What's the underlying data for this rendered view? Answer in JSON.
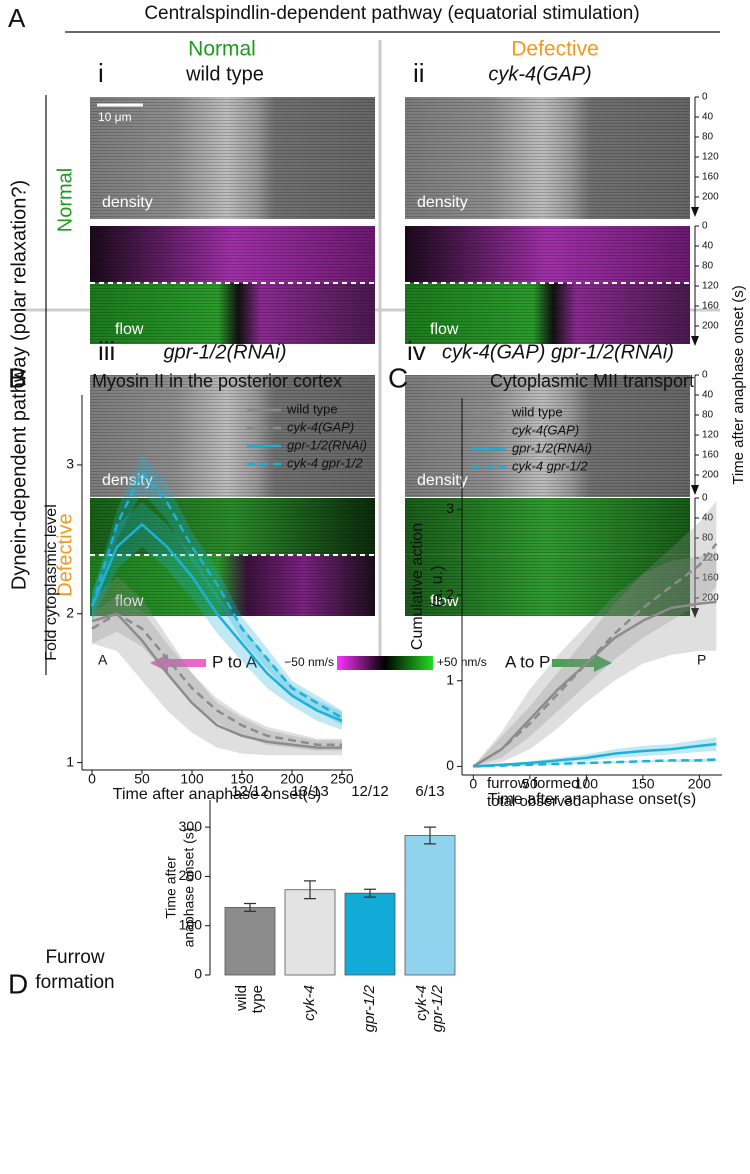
{
  "panel_a": {
    "label": "A",
    "title": "Centralspindlin-dependent pathway (equatorial stimulation)",
    "column_headers": [
      {
        "text": "Normal",
        "color": "#1f9a1f"
      },
      {
        "text": "Defective",
        "color": "#f39a1e"
      }
    ],
    "row_axis_label": "Dynein-dependent pathway (polar relaxation?)",
    "row_headers": [
      {
        "text": "Normal",
        "color": "#1f9a1f"
      },
      {
        "text": "Defective",
        "color": "#f39a1e"
      }
    ],
    "panels": [
      {
        "numeral": "i",
        "genotype": "wild type"
      },
      {
        "numeral": "ii",
        "genotype": "cyk-4(GAP)"
      },
      {
        "numeral": "iii",
        "genotype": "gpr-1/2(RNAi)"
      },
      {
        "numeral": "iv",
        "genotype": "cyk-4(GAP) gpr-1/2(RNAi)"
      }
    ],
    "density_label": "density",
    "flow_label": "flow",
    "scale_bar": "10 μm",
    "time_ticks": [
      0,
      40,
      80,
      120,
      160,
      200
    ],
    "time_label": "Time after anaphase onset (s)",
    "anterior": "A",
    "posterior": "P",
    "p_to_a": "P to A",
    "a_to_p": "A to P",
    "scale_min": "−50 nm/s",
    "scale_max": "+50 nm/s"
  },
  "chart_data": [
    {
      "type": "line",
      "label": "B",
      "title": "Myosin II in the posterior cortex",
      "xlabel": "Time after anaphase onset(s)",
      "ylabel": [
        "Fold cytoplasmic level"
      ],
      "x": [
        0,
        25,
        50,
        75,
        100,
        125,
        150,
        175,
        200,
        225,
        250
      ],
      "xlim": [
        -10,
        260
      ],
      "ylim": [
        0.95,
        3.47
      ],
      "xticks": [
        0,
        50,
        100,
        150,
        200,
        250
      ],
      "yticks": [
        1,
        2,
        3
      ],
      "legend": "upper right",
      "series": [
        {
          "name": "wild type",
          "color": "#8c8c8c",
          "dash": false,
          "values": [
            1.95,
            2.0,
            1.82,
            1.6,
            1.4,
            1.25,
            1.18,
            1.14,
            1.12,
            1.1,
            1.1
          ],
          "lower": [
            1.8,
            1.75,
            1.55,
            1.35,
            1.2,
            1.1,
            1.06,
            1.05,
            1.05,
            1.05,
            1.05
          ],
          "upper": [
            2.1,
            2.25,
            2.1,
            1.85,
            1.6,
            1.4,
            1.3,
            1.22,
            1.18,
            1.15,
            1.15
          ]
        },
        {
          "name": "cyk-4(GAP)",
          "color": "#8c8c8c",
          "dash": true,
          "values": [
            1.9,
            2.0,
            1.9,
            1.7,
            1.5,
            1.35,
            1.25,
            1.18,
            1.15,
            1.12,
            1.12
          ],
          "lower": [
            1.8,
            1.88,
            1.78,
            1.6,
            1.4,
            1.27,
            1.18,
            1.12,
            1.1,
            1.08,
            1.08
          ],
          "upper": [
            2.0,
            2.12,
            2.02,
            1.8,
            1.6,
            1.43,
            1.32,
            1.24,
            1.2,
            1.16,
            1.16
          ]
        },
        {
          "name": "gpr-1/2(RNAi)",
          "color": "#1fb0d8",
          "dash": false,
          "values": [
            2.05,
            2.45,
            2.6,
            2.45,
            2.25,
            2.0,
            1.8,
            1.6,
            1.45,
            1.35,
            1.28
          ],
          "lower": [
            1.95,
            2.3,
            2.45,
            2.3,
            2.1,
            1.87,
            1.68,
            1.5,
            1.38,
            1.28,
            1.22
          ],
          "upper": [
            2.15,
            2.6,
            2.75,
            2.6,
            2.4,
            2.13,
            1.92,
            1.7,
            1.52,
            1.42,
            1.34
          ]
        },
        {
          "name": "cyk-4 gpr-1/2",
          "color": "#1fb0d8",
          "dash": true,
          "values": [
            2.05,
            2.6,
            2.95,
            2.75,
            2.45,
            2.2,
            1.9,
            1.7,
            1.5,
            1.4,
            1.3
          ],
          "lower": [
            1.97,
            2.5,
            2.82,
            2.63,
            2.35,
            2.1,
            1.82,
            1.63,
            1.45,
            1.35,
            1.25
          ],
          "upper": [
            2.13,
            2.7,
            3.08,
            2.87,
            2.55,
            2.3,
            1.98,
            1.77,
            1.55,
            1.45,
            1.35
          ]
        }
      ]
    },
    {
      "type": "line",
      "label": "C",
      "title": "Cytoplasmic MII transport",
      "xlabel": "Time after anaphase onset(s)",
      "ylabel": [
        "Cumulative action",
        "(a. u.)"
      ],
      "x": [
        0,
        25,
        50,
        75,
        100,
        125,
        150,
        175,
        200,
        215
      ],
      "xlim": [
        -10,
        220
      ],
      "ylim": [
        -0.1,
        4.3
      ],
      "xticks": [
        0,
        50,
        100,
        150,
        200
      ],
      "yticks": [
        0,
        1,
        2,
        3
      ],
      "legend": "upper left",
      "series": [
        {
          "name": "wild type",
          "color": "#8c8c8c",
          "dash": false,
          "values": [
            0,
            0.2,
            0.55,
            0.9,
            1.2,
            1.5,
            1.7,
            1.85,
            1.9,
            1.92
          ],
          "lower": [
            0,
            0.05,
            0.2,
            0.45,
            0.75,
            1.0,
            1.2,
            1.3,
            1.35,
            1.35
          ],
          "upper": [
            0,
            0.4,
            0.9,
            1.3,
            1.65,
            2.0,
            2.25,
            2.4,
            2.45,
            2.5
          ]
        },
        {
          "name": "cyk-4(GAP)",
          "color": "#8c8c8c",
          "dash": true,
          "values": [
            0,
            0.2,
            0.5,
            0.85,
            1.2,
            1.55,
            1.85,
            2.1,
            2.35,
            2.6
          ],
          "lower": [
            0,
            0.1,
            0.35,
            0.65,
            0.95,
            1.25,
            1.5,
            1.7,
            1.9,
            2.1
          ],
          "upper": [
            0,
            0.35,
            0.7,
            1.1,
            1.5,
            1.9,
            2.25,
            2.55,
            2.85,
            3.1
          ]
        },
        {
          "name": "gpr-1/2(RNAi)",
          "color": "#1fb0d8",
          "dash": false,
          "values": [
            0,
            0.02,
            0.04,
            0.07,
            0.1,
            0.15,
            0.18,
            0.2,
            0.24,
            0.26
          ],
          "lower": [
            0,
            0.01,
            0.02,
            0.04,
            0.06,
            0.1,
            0.12,
            0.14,
            0.17,
            0.18
          ],
          "upper": [
            0,
            0.03,
            0.06,
            0.1,
            0.14,
            0.2,
            0.24,
            0.26,
            0.31,
            0.34
          ]
        },
        {
          "name": "cyk-4 gpr-1/2",
          "color": "#1fb0d8",
          "dash": true,
          "values": [
            0,
            0.01,
            0.02,
            0.03,
            0.04,
            0.05,
            0.06,
            0.07,
            0.07,
            0.08
          ],
          "lower": [
            0,
            0.005,
            0.01,
            0.02,
            0.03,
            0.04,
            0.05,
            0.05,
            0.05,
            0.06
          ],
          "upper": [
            0,
            0.02,
            0.03,
            0.04,
            0.05,
            0.06,
            0.07,
            0.08,
            0.09,
            0.1
          ]
        }
      ]
    },
    {
      "type": "bar",
      "label": "D",
      "title": [
        "Furrow",
        "formation"
      ],
      "ylabel": [
        "Time after",
        "anaphase onset (s)"
      ],
      "categories": [
        "wild type",
        "cyk-4",
        "gpr-1/2",
        "cyk-4 gpr-1/2"
      ],
      "values": [
        137,
        173,
        166,
        283
      ],
      "errors": [
        8,
        18,
        8,
        17
      ],
      "colors": [
        "#8c8c8c",
        "#e3e3e3",
        "#12aad6",
        "#8fd3ee"
      ],
      "counts": [
        "12/12",
        "13/13",
        "12/12",
        "6/13"
      ],
      "note": [
        "furrow formed /",
        "total observed"
      ],
      "ylim": [
        0,
        355
      ],
      "yticks": [
        0,
        100,
        200,
        300
      ]
    }
  ]
}
